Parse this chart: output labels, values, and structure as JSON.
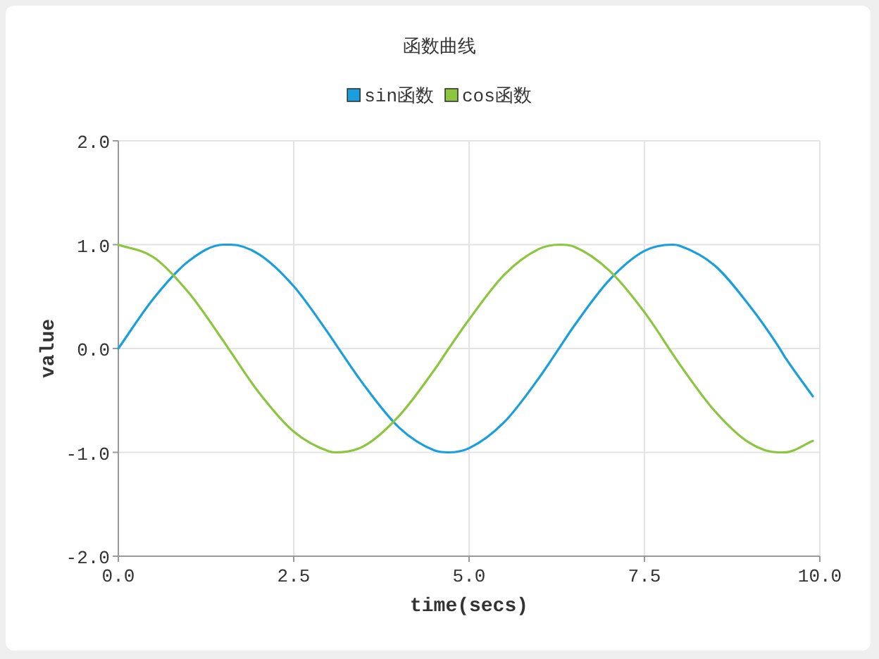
{
  "chart_data": {
    "type": "line",
    "title": "函数曲线",
    "xlabel": "time(secs)",
    "ylabel": "value",
    "x": [
      0,
      0.5,
      1,
      1.5,
      1.6,
      2,
      2.5,
      3,
      3.1,
      3.5,
      4,
      4.5,
      4.7,
      5,
      5.5,
      6,
      6.3,
      6.5,
      7,
      7.5,
      7.9,
      8,
      8.5,
      9,
      9.4,
      9.5,
      9.9
    ],
    "series": [
      {
        "name": "sin函数",
        "color": "#1a9fde",
        "values": [
          0,
          0.48,
          0.84,
          1.0,
          1.0,
          0.91,
          0.6,
          0.14,
          0.04,
          -0.35,
          -0.76,
          -0.98,
          -1.0,
          -0.96,
          -0.71,
          -0.28,
          0.02,
          0.22,
          0.66,
          0.94,
          1.0,
          0.99,
          0.8,
          0.41,
          0.03,
          -0.08,
          -0.46
        ]
      },
      {
        "name": "cos函数",
        "color": "#8cc63f",
        "values": [
          1.0,
          0.88,
          0.54,
          0.07,
          -0.03,
          -0.42,
          -0.8,
          -0.99,
          -1.0,
          -0.94,
          -0.65,
          -0.21,
          -0.01,
          0.28,
          0.71,
          0.96,
          1.0,
          0.98,
          0.75,
          0.35,
          -0.05,
          -0.15,
          -0.6,
          -0.91,
          -1.0,
          -1.0,
          -0.89
        ]
      }
    ],
    "xlim": [
      0,
      10
    ],
    "ylim": [
      -2,
      2
    ],
    "xticks": [
      {
        "value": 0,
        "label": "0.0"
      },
      {
        "value": 2.5,
        "label": "2.5"
      },
      {
        "value": 5,
        "label": "5.0"
      },
      {
        "value": 7.5,
        "label": "7.5"
      },
      {
        "value": 10,
        "label": "10.0"
      }
    ],
    "yticks": [
      {
        "value": -2,
        "label": "-2.0"
      },
      {
        "value": -1,
        "label": "-1.0"
      },
      {
        "value": 0,
        "label": "0.0"
      },
      {
        "value": 1,
        "label": "1.0"
      },
      {
        "value": 2,
        "label": "2.0"
      }
    ],
    "grid": true,
    "legend": "top",
    "marker": "none",
    "line_style": "solid"
  }
}
